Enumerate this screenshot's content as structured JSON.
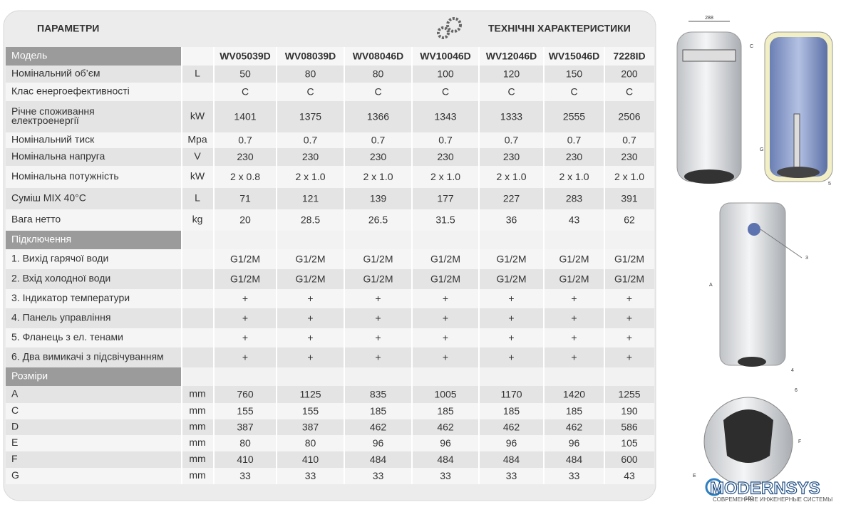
{
  "header": {
    "title": "ПАРАМЕТРИ",
    "subtitle": "ТЕХНІЧНІ ХАРАКТЕРИСТИКИ"
  },
  "table": {
    "header": {
      "label": "Модель",
      "models": [
        "WV05039D",
        "WV08039D",
        "WV08046D",
        "WV10046D",
        "WV12046D",
        "WV15046D",
        "7228ID"
      ]
    },
    "rows": [
      {
        "label": "Номінальний об’єм",
        "unit": "L",
        "values": [
          50,
          80,
          80,
          100,
          120,
          150,
          200
        ]
      },
      {
        "label": "Клас енергоефективності",
        "values": [
          "C",
          "C",
          "C",
          "C",
          "C",
          "C",
          "C"
        ]
      },
      {
        "label": "Річне споживання електроенергії",
        "unit": "kW",
        "values": [
          1401,
          1375,
          1366,
          1343,
          1333,
          2555,
          2506
        ]
      },
      {
        "label": "Номінальний тиск",
        "unit": "Mpa",
        "values": [
          0.7,
          0.7,
          0.7,
          0.7,
          0.7,
          0.7,
          0.7
        ]
      },
      {
        "label": "Номінальна напруга",
        "unit": "V",
        "values": [
          230,
          230,
          230,
          230,
          230,
          230,
          230
        ]
      },
      {
        "label": "Номінальна потужність",
        "unit": "kW",
        "values": [
          "2 x 0.8",
          "2 x 1.0",
          "2 x 1.0",
          "2 x 1.0",
          "2 x 1.0",
          "2 x 1.0",
          "2 x 1.0"
        ]
      },
      {
        "label": "Суміш MIX 40°C",
        "unit": "L",
        "values": [
          71,
          121,
          139,
          177,
          227,
          283,
          391
        ]
      },
      {
        "label": "Вага нетто",
        "unit": "kg",
        "values": [
          20,
          28.5,
          26.5,
          31.5,
          36,
          43,
          62
        ]
      },
      {
        "section": "Підключення"
      },
      {
        "label": "1. Вихід гарячої води",
        "values": [
          "G1/2M",
          "G1/2M",
          "G1/2M",
          "G1/2M",
          "G1/2M",
          "G1/2M",
          "G1/2M"
        ]
      },
      {
        "label": "2. Вхід холодної води",
        "values": [
          "G1/2M",
          "G1/2M",
          "G1/2M",
          "G1/2M",
          "G1/2M",
          "G1/2M",
          "G1/2M"
        ]
      },
      {
        "label": "3. Індикатор температури",
        "values": [
          "+",
          "+",
          "+",
          "+",
          "+",
          "+",
          "+"
        ]
      },
      {
        "label": "4. Панель управління",
        "values": [
          "+",
          "+",
          "+",
          "+",
          "+",
          "+",
          "+"
        ]
      },
      {
        "label": "5. Фланець з ел. тенами",
        "values": [
          "+",
          "+",
          "+",
          "+",
          "+",
          "+",
          "+"
        ]
      },
      {
        "label": "6. Два вимикачі з підсвічуванням",
        "values": [
          "+",
          "+",
          "+",
          "+",
          "+",
          "+",
          "+"
        ]
      },
      {
        "section": "Розміри"
      },
      {
        "label": "A",
        "unit": "mm",
        "values": [
          760,
          1125,
          835,
          1005,
          1170,
          1420,
          1255
        ]
      },
      {
        "label": "C",
        "unit": "mm",
        "values": [
          155,
          155,
          185,
          185,
          185,
          185,
          190
        ]
      },
      {
        "label": "D",
        "unit": "mm",
        "values": [
          387,
          387,
          462,
          462,
          462,
          462,
          586
        ]
      },
      {
        "label": "E",
        "unit": "mm",
        "values": [
          80,
          80,
          96,
          96,
          96,
          96,
          105
        ]
      },
      {
        "label": "F",
        "unit": "mm",
        "values": [
          410,
          410,
          484,
          484,
          484,
          484,
          600
        ]
      },
      {
        "label": "G",
        "unit": "mm",
        "values": [
          33,
          33,
          33,
          33,
          33,
          33,
          43
        ]
      }
    ]
  },
  "drawings": {
    "labels": [
      "288",
      "C",
      "G",
      "5",
      "3",
      "A",
      "4",
      "6",
      "F",
      "E",
      "100"
    ]
  },
  "logo": {
    "name": "MODERNSYS",
    "tagline": "СОВРЕМЕННЫЕ ИНЖЕНЕРНЫЕ СИСТЕМЫ"
  }
}
